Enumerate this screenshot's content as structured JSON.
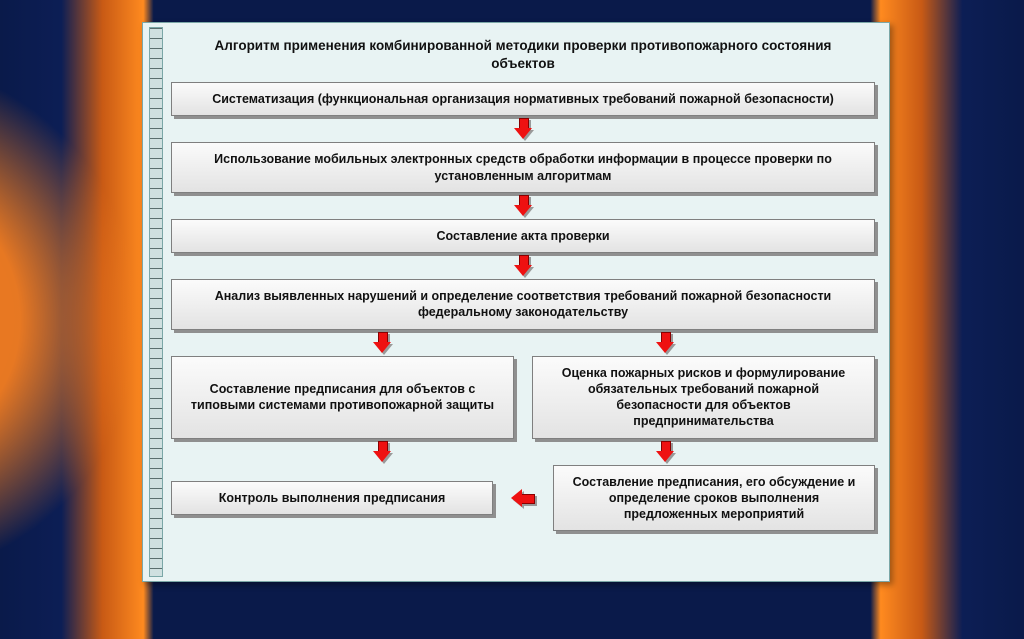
{
  "diagram": {
    "type": "flowchart",
    "background_color": "#e8f3f3",
    "panel_border": "#7ba7a7",
    "box_bg_top": "#fbfbfb",
    "box_bg_bottom": "#e3e3e3",
    "box_border": "#7f7f7f",
    "box_shadow": "#8f8f8f",
    "arrow_fill": "#ee1111",
    "arrow_border": "#880000",
    "title_fontsize": 13.5,
    "box_fontsize": 12.5,
    "title": "Алгоритм применения комбинированной методики проверки противопожарного состояния объектов",
    "steps": {
      "s1": "Систематизация (функциональная организация нормативных требований пожарной безопасности)",
      "s2": "Использование мобильных электронных средств обработки информации в процессе проверки по установленным алгоритмам",
      "s3": "Составление акта проверки",
      "s4": "Анализ выявленных нарушений и определение соответствия требований пожарной безопасности федеральному законодательству",
      "s5a": "Составление предписания для объектов с типовыми системами противопожарной защиты",
      "s5b": "Оценка пожарных рисков и формулирование обязательных требований пожарной безопасности для объектов предпринимательства",
      "s6a": "Контроль выполнения предписания",
      "s6b": "Составление предписания, его обсуждение и определение сроков выполнения предложенных мероприятий"
    }
  }
}
